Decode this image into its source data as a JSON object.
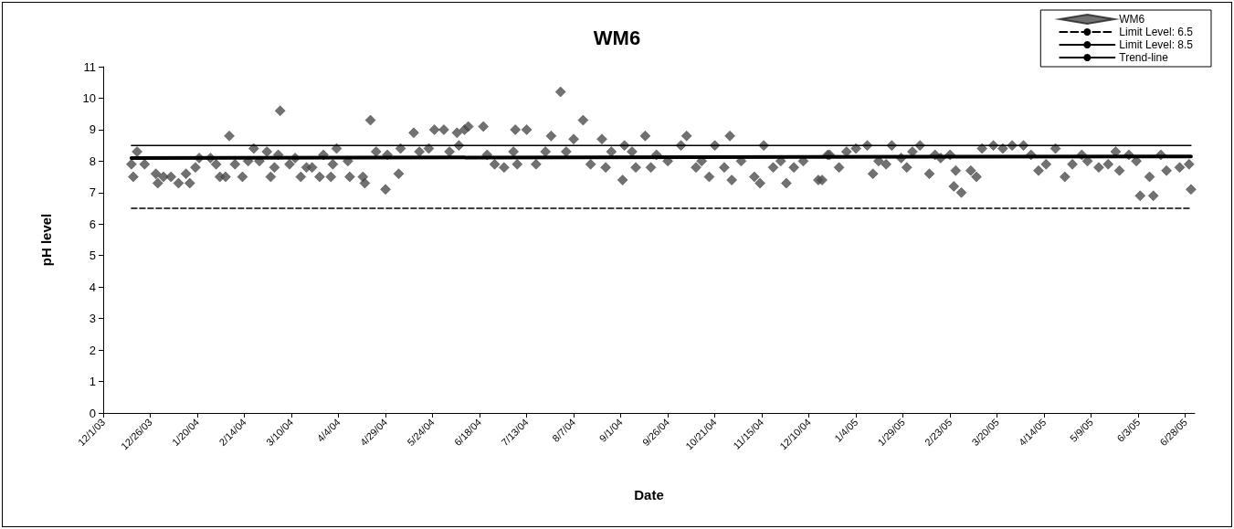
{
  "chart_data": {
    "type": "scatter",
    "title": "WM6",
    "xlabel": "Date",
    "ylabel": "pH level",
    "xlim": [
      "2003-12-01",
      "2005-07-03"
    ],
    "xticks": [
      {
        "value": "2003-12-01",
        "label": "12/1/03"
      },
      {
        "value": "2003-12-26",
        "label": "12/26/03"
      },
      {
        "value": "2004-01-20",
        "label": "1/20/04"
      },
      {
        "value": "2004-02-14",
        "label": "2/14/04"
      },
      {
        "value": "2004-03-10",
        "label": "3/10/04"
      },
      {
        "value": "2004-04-04",
        "label": "4/4/04"
      },
      {
        "value": "2004-04-29",
        "label": "4/29/04"
      },
      {
        "value": "2004-05-24",
        "label": "5/24/04"
      },
      {
        "value": "2004-06-18",
        "label": "6/18/04"
      },
      {
        "value": "2004-07-13",
        "label": "7/13/04"
      },
      {
        "value": "2004-08-07",
        "label": "8/7/04"
      },
      {
        "value": "2004-09-01",
        "label": "9/1/04"
      },
      {
        "value": "2004-09-26",
        "label": "9/26/04"
      },
      {
        "value": "2004-10-21",
        "label": "10/21/04"
      },
      {
        "value": "2004-11-15",
        "label": "11/15/04"
      },
      {
        "value": "2004-12-10",
        "label": "12/10/04"
      },
      {
        "value": "2005-01-04",
        "label": "1/4/05"
      },
      {
        "value": "2005-01-29",
        "label": "1/29/05"
      },
      {
        "value": "2005-02-23",
        "label": "2/23/05"
      },
      {
        "value": "2005-03-20",
        "label": "3/20/05"
      },
      {
        "value": "2005-04-14",
        "label": "4/14/05"
      },
      {
        "value": "2005-05-09",
        "label": "5/9/05"
      },
      {
        "value": "2005-06-03",
        "label": "6/3/05"
      },
      {
        "value": "2005-06-28",
        "label": "6/28/05"
      }
    ],
    "ylim": [
      0,
      11
    ],
    "yticks": [
      0,
      1,
      2,
      3,
      4,
      5,
      6,
      7,
      8,
      9,
      10,
      11
    ],
    "grid": false,
    "legend": "top right",
    "series": [
      {
        "name": "WM6",
        "marker": "diamond",
        "color": "#4d4d4d",
        "x": [
          "2003-12-16",
          "2003-12-17",
          "2003-12-19",
          "2003-12-23",
          "2003-12-29",
          "2003-12-30",
          "2004-01-02",
          "2004-01-06",
          "2004-01-10",
          "2004-01-14",
          "2004-01-16",
          "2004-01-19",
          "2004-01-21",
          "2004-01-27",
          "2004-01-30",
          "2004-02-01",
          "2004-02-04",
          "2004-02-06",
          "2004-02-09",
          "2004-02-13",
          "2004-02-16",
          "2004-02-19",
          "2004-02-22",
          "2004-02-26",
          "2004-02-28",
          "2004-03-01",
          "2004-03-03",
          "2004-03-04",
          "2004-03-09",
          "2004-03-12",
          "2004-03-15",
          "2004-03-18",
          "2004-03-21",
          "2004-03-25",
          "2004-03-27",
          "2004-03-31",
          "2004-04-01",
          "2004-04-03",
          "2004-04-09",
          "2004-04-10",
          "2004-04-17",
          "2004-04-18",
          "2004-04-21",
          "2004-04-24",
          "2004-04-29",
          "2004-04-30",
          "2004-05-06",
          "2004-05-07",
          "2004-05-14",
          "2004-05-17",
          "2004-05-22",
          "2004-05-25",
          "2004-05-30",
          "2004-06-02",
          "2004-06-06",
          "2004-06-07",
          "2004-06-10",
          "2004-06-12",
          "2004-06-20",
          "2004-06-22",
          "2004-06-26",
          "2004-07-01",
          "2004-07-06",
          "2004-07-07",
          "2004-07-08",
          "2004-07-13",
          "2004-07-18",
          "2004-07-23",
          "2004-07-26",
          "2004-07-31",
          "2004-08-03",
          "2004-08-07",
          "2004-08-12",
          "2004-08-16",
          "2004-08-22",
          "2004-08-24",
          "2004-08-27",
          "2004-09-02",
          "2004-09-03",
          "2004-09-07",
          "2004-09-09",
          "2004-09-14",
          "2004-09-17",
          "2004-09-20",
          "2004-09-26",
          "2004-10-03",
          "2004-10-06",
          "2004-10-11",
          "2004-10-14",
          "2004-10-18",
          "2004-10-21",
          "2004-10-26",
          "2004-10-29",
          "2004-10-30",
          "2004-11-04",
          "2004-11-11",
          "2004-11-14",
          "2004-11-16",
          "2004-11-21",
          "2004-11-25",
          "2004-11-28",
          "2004-12-02",
          "2004-12-07",
          "2004-12-15",
          "2004-12-17",
          "2004-12-20",
          "2004-12-21",
          "2004-12-26",
          "2004-12-30",
          "2005-01-04",
          "2005-01-10",
          "2005-01-13",
          "2005-01-16",
          "2005-01-20",
          "2005-01-23",
          "2005-01-28",
          "2005-01-31",
          "2005-02-03",
          "2005-02-07",
          "2005-02-12",
          "2005-02-15",
          "2005-02-18",
          "2005-02-23",
          "2005-02-25",
          "2005-02-26",
          "2005-03-01",
          "2005-03-06",
          "2005-03-09",
          "2005-03-12",
          "2005-03-18",
          "2005-03-23",
          "2005-03-28",
          "2005-04-03",
          "2005-04-07",
          "2005-04-11",
          "2005-04-15",
          "2005-04-20",
          "2005-04-25",
          "2005-04-29",
          "2005-05-04",
          "2005-05-07",
          "2005-05-13",
          "2005-05-18",
          "2005-05-22",
          "2005-05-24",
          "2005-05-29",
          "2005-06-02",
          "2005-06-04",
          "2005-06-09",
          "2005-06-11",
          "2005-06-15",
          "2005-06-18",
          "2005-06-25",
          "2005-06-30",
          "2005-07-01"
        ],
        "values": [
          7.9,
          7.5,
          8.3,
          7.9,
          7.6,
          7.3,
          7.5,
          7.5,
          7.3,
          7.6,
          7.3,
          7.8,
          8.1,
          8.1,
          7.9,
          7.5,
          7.5,
          8.8,
          7.9,
          7.5,
          8.0,
          8.4,
          8.0,
          8.3,
          7.5,
          7.8,
          8.2,
          9.6,
          7.9,
          8.1,
          7.5,
          7.8,
          7.8,
          7.5,
          8.2,
          7.5,
          7.9,
          8.4,
          8.0,
          7.5,
          7.5,
          7.3,
          9.3,
          8.3,
          7.1,
          8.2,
          7.6,
          8.4,
          8.9,
          8.3,
          8.4,
          9.0,
          9.0,
          8.3,
          8.9,
          8.5,
          9.0,
          9.1,
          9.1,
          8.2,
          7.9,
          7.8,
          8.3,
          9.0,
          7.9,
          9.0,
          7.9,
          8.3,
          8.8,
          10.2,
          8.3,
          8.7,
          9.3,
          7.9,
          8.7,
          7.8,
          8.3,
          7.4,
          8.5,
          8.3,
          7.8,
          8.8,
          7.8,
          8.2,
          8.0,
          8.5,
          8.8,
          7.8,
          8.0,
          7.5,
          8.5,
          7.8,
          8.8,
          7.4,
          8.0,
          7.5,
          7.3,
          8.5,
          7.8,
          8.0,
          7.3,
          7.8,
          8.0,
          7.4,
          7.4,
          8.2,
          8.2,
          7.8,
          8.3,
          8.4,
          8.5,
          7.6,
          8.0,
          7.9,
          8.5,
          8.1,
          7.8,
          8.3,
          8.5,
          7.6,
          8.2,
          8.1,
          8.2,
          7.2,
          7.7,
          7.0,
          7.7,
          7.5,
          8.4,
          8.5,
          8.4,
          8.5,
          8.5,
          8.2,
          7.7,
          7.9,
          8.4,
          7.5,
          7.9,
          8.2,
          8.0,
          7.8,
          7.9,
          8.3,
          7.7,
          8.2,
          8.0,
          6.9,
          7.5,
          6.9,
          8.2,
          7.7,
          7.8,
          7.9,
          7.1
        ]
      },
      {
        "name": "Limit Level: 6.5",
        "type": "line",
        "marker": "none",
        "line_style": "dashed",
        "color": "#000000",
        "x": [
          "2003-12-16",
          "2005-07-01"
        ],
        "values": [
          6.5,
          6.5
        ]
      },
      {
        "name": "Limit Level: 8.5",
        "type": "line",
        "marker": "none",
        "line_style": "solid",
        "color": "#000000",
        "x": [
          "2003-12-16",
          "2005-07-01"
        ],
        "values": [
          8.5,
          8.5
        ]
      },
      {
        "name": "Trend-line",
        "type": "line",
        "marker": "none",
        "line_style": "solid",
        "color": "#000000",
        "x": [
          "2003-12-16",
          "2005-07-01"
        ],
        "values": [
          8.1,
          8.15
        ]
      }
    ]
  }
}
